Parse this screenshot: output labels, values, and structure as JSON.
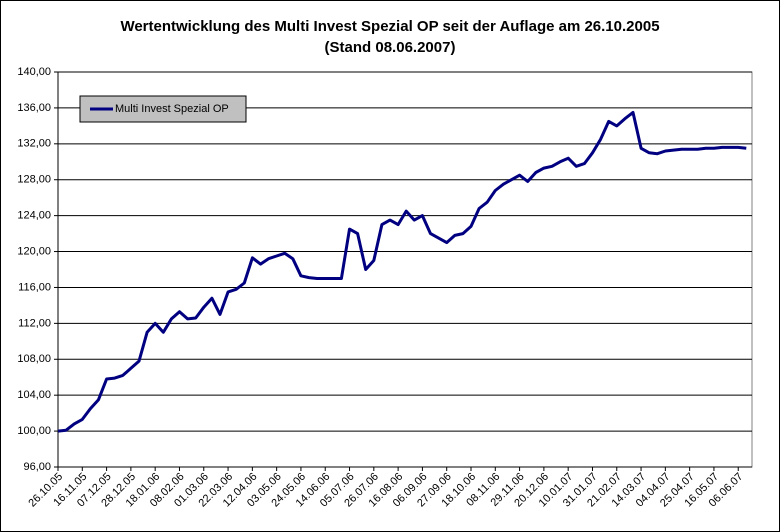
{
  "chart_data": {
    "type": "line",
    "title": "Wertentwicklung des Multi Invest Spezial OP seit der Auflage am 26.10.2005",
    "subtitle": "(Stand 08.06.2007)",
    "categories": [
      "26.10.05",
      null,
      null,
      "16.11.05",
      null,
      null,
      "07.12.05",
      null,
      null,
      "28.12.05",
      null,
      null,
      "18.01.06",
      null,
      null,
      "08.02.06",
      null,
      null,
      "01.03.06",
      null,
      null,
      "22.03.06",
      null,
      null,
      "12.04.06",
      null,
      null,
      "03.05.06",
      null,
      null,
      "24.05.06",
      null,
      null,
      "14.06.06",
      null,
      null,
      "05.07.06",
      null,
      null,
      "26.07.06",
      null,
      null,
      "16.08.06",
      null,
      null,
      "06.09.06",
      null,
      null,
      "27.09.06",
      null,
      null,
      "18.10.06",
      null,
      null,
      "08.11.06",
      null,
      null,
      "29.11.06",
      null,
      null,
      "20.12.06",
      null,
      null,
      "10.01.07",
      null,
      null,
      "31.01.07",
      null,
      null,
      "21.02.07",
      null,
      null,
      "14.03.07",
      null,
      null,
      "04.04.07",
      null,
      null,
      "25.04.07",
      null,
      null,
      "16.05.07",
      null,
      null,
      "06.06.07",
      null
    ],
    "series": [
      {
        "name": "Multi Invest Spezial OP",
        "color": "#000080",
        "values": [
          100.0,
          100.1,
          100.8,
          101.3,
          102.5,
          103.5,
          105.8,
          105.9,
          106.2,
          107.0,
          107.8,
          111.0,
          112.0,
          111.0,
          112.5,
          113.3,
          112.5,
          112.6,
          113.8,
          114.8,
          113.0,
          115.5,
          115.8,
          116.5,
          119.3,
          118.6,
          119.2,
          119.5,
          119.8,
          119.2,
          117.3,
          117.1,
          117.0,
          117.0,
          117.0,
          117.0,
          122.5,
          122.0,
          118.0,
          119.0,
          123.0,
          123.5,
          123.0,
          124.5,
          123.5,
          124.0,
          122.0,
          121.5,
          121.0,
          121.8,
          122.0,
          122.8,
          124.8,
          125.5,
          126.8,
          127.5,
          128.0,
          128.5,
          127.8,
          128.8,
          129.3,
          129.5,
          130.0,
          130.4,
          129.5,
          129.8,
          131.0,
          132.5,
          134.5,
          134.0,
          134.8,
          135.5,
          131.5,
          131.0,
          130.9,
          131.2,
          131.3,
          131.4,
          131.4,
          131.4,
          131.5,
          131.5,
          131.6,
          131.6,
          131.6,
          131.5
        ]
      }
    ],
    "ylim": [
      96,
      140
    ],
    "yticks": [
      {
        "value": 96,
        "label": "96,00"
      },
      {
        "value": 100,
        "label": "100,00"
      },
      {
        "value": 104,
        "label": "104,00"
      },
      {
        "value": 108,
        "label": "108,00"
      },
      {
        "value": 112,
        "label": "112,00"
      },
      {
        "value": 116,
        "label": "116,00"
      },
      {
        "value": 120,
        "label": "120,00"
      },
      {
        "value": 124,
        "label": "124,00"
      },
      {
        "value": 128,
        "label": "128,00"
      },
      {
        "value": 132,
        "label": "132,00"
      },
      {
        "value": 136,
        "label": "136,00"
      },
      {
        "value": 140,
        "label": "140,00"
      }
    ],
    "grid": true,
    "legend": "upper left"
  }
}
